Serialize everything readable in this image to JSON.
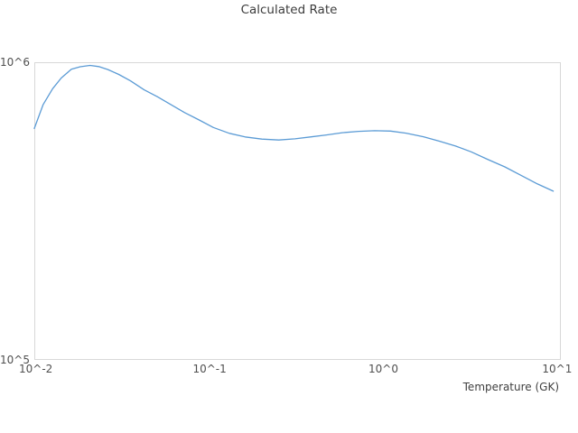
{
  "style": {
    "background": "#ffffff",
    "line_color": "#5b9bd5",
    "border_color": "#d8d8d8",
    "title_color": "#3c3c3c",
    "tick_color": "#4f4f4f"
  },
  "chart_data": {
    "type": "line",
    "title": "Calculated Rate",
    "xlabel": "Temperature (GK)",
    "ylabel": "",
    "x_scale": "log",
    "y_scale": "log",
    "xlim": [
      0.0098,
      10.5
    ],
    "ylim": [
      100000,
      1000000
    ],
    "grid": false,
    "legend": "none",
    "x_ticks": [
      {
        "value": 0.01,
        "label": "10^-2"
      },
      {
        "value": 0.1,
        "label": "10^-1"
      },
      {
        "value": 1,
        "label": "10^0"
      },
      {
        "value": 10,
        "label": "10^1"
      }
    ],
    "y_ticks": [
      {
        "value": 100000,
        "label": "10^5"
      },
      {
        "value": 1000000,
        "label": "10^6"
      }
    ],
    "series": [
      {
        "name": "Calculated Rate",
        "x": [
          0.0098,
          0.011,
          0.0125,
          0.014,
          0.016,
          0.018,
          0.0205,
          0.023,
          0.026,
          0.03,
          0.035,
          0.042,
          0.05,
          0.06,
          0.072,
          0.087,
          0.105,
          0.13,
          0.16,
          0.2,
          0.25,
          0.31,
          0.38,
          0.47,
          0.58,
          0.72,
          0.89,
          1.1,
          1.35,
          1.7,
          2.1,
          2.6,
          3.2,
          4.0,
          5.0,
          6.2,
          7.7,
          9.5
        ],
        "y": [
          599000,
          720000,
          815000,
          885000,
          947000,
          966000,
          976000,
          967000,
          945000,
          910000,
          866000,
          808000,
          766000,
          720000,
          677000,
          640000,
          604000,
          577000,
          561000,
          552000,
          548000,
          553000,
          561000,
          570000,
          580000,
          586000,
          589000,
          587000,
          578000,
          562000,
          543000,
          523000,
          500000,
          471000,
          445000,
          417000,
          390000,
          369000
        ]
      }
    ]
  }
}
